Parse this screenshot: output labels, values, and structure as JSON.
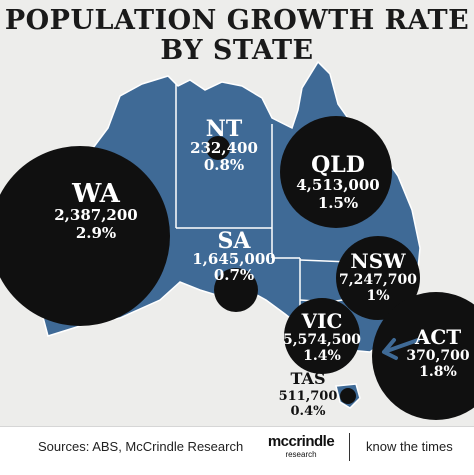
{
  "title_line1": "POPULATION GROWTH RATE",
  "title_line2": "BY STATE",
  "colors": {
    "background": "#ededeb",
    "land": "#3f6a96",
    "bubble": "#101010",
    "label": "#ffffff"
  },
  "states": {
    "NT": {
      "name": "NT",
      "population": "232,400",
      "growth": "0.8%"
    },
    "QLD": {
      "name": "QLD",
      "population": "4,513,000",
      "growth": "1.5%"
    },
    "WA": {
      "name": "WA",
      "population": "2,387,200",
      "growth": "2.9%"
    },
    "SA": {
      "name": "SA",
      "population": "1,645,000",
      "growth": "0.7%"
    },
    "NSW": {
      "name": "NSW",
      "population": "7,247,700",
      "growth": "1%"
    },
    "VIC": {
      "name": "VIC",
      "population": "5,574,500",
      "growth": "1.4%"
    },
    "ACT": {
      "name": "ACT",
      "population": "370,700",
      "growth": "1.8%"
    },
    "TAS": {
      "name": "TAS",
      "population": "511,700",
      "growth": "0.4%"
    }
  },
  "footer": {
    "sources": "Sources: ABS, McCrindle Research",
    "brand_name": "mccrindle",
    "brand_sub": "research",
    "tagline": "know the times"
  }
}
